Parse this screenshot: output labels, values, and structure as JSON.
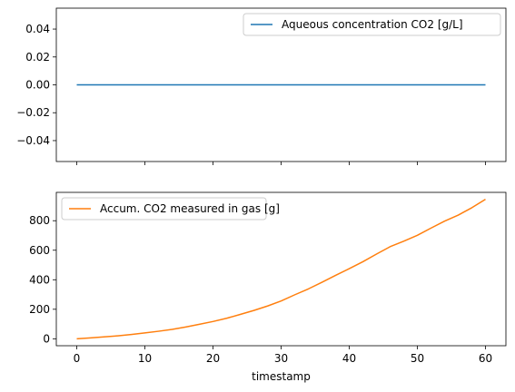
{
  "chart_data": [
    {
      "type": "line",
      "xlabel": "",
      "ylabel": "",
      "xlim": [
        -3,
        63
      ],
      "ylim": [
        -0.055,
        0.055
      ],
      "x_ticks": [
        0,
        10,
        20,
        30,
        40,
        50,
        60
      ],
      "x_tick_labels_visible": false,
      "y_ticks": [
        -0.04,
        -0.02,
        0.0,
        0.02,
        0.04
      ],
      "y_tick_labels": [
        "−0.04",
        "−0.02",
        "0.00",
        "0.02",
        "0.04"
      ],
      "grid": false,
      "legend_position": "upper-right",
      "series": [
        {
          "name": "Aqueous concentration CO2 [g/L]",
          "color": "#1f77b4",
          "x": [
            0,
            60
          ],
          "y": [
            0,
            0
          ]
        }
      ]
    },
    {
      "type": "line",
      "xlabel": "timestamp",
      "ylabel": "",
      "xlim": [
        -3,
        63
      ],
      "ylim": [
        -47,
        992
      ],
      "x_ticks": [
        0,
        10,
        20,
        30,
        40,
        50,
        60
      ],
      "x_tick_labels": [
        "0",
        "10",
        "20",
        "30",
        "40",
        "50",
        "60"
      ],
      "y_ticks": [
        0,
        200,
        400,
        600,
        800
      ],
      "y_tick_labels": [
        "0",
        "200",
        "400",
        "600",
        "800"
      ],
      "grid": false,
      "legend_position": "upper-left",
      "series": [
        {
          "name": "Accum. CO2 measured in gas [g]",
          "color": "#ff7f0e",
          "x": [
            0,
            2,
            4,
            6,
            8,
            10,
            12,
            14,
            16,
            18,
            20,
            22,
            24,
            26,
            28,
            30,
            32,
            34,
            36,
            38,
            40,
            42,
            44,
            46,
            48,
            50,
            52,
            54,
            56,
            58,
            60
          ],
          "y": [
            0,
            6,
            13,
            20,
            29,
            40,
            51,
            64,
            80,
            98,
            117,
            139,
            165,
            192,
            222,
            256,
            298,
            338,
            383,
            430,
            475,
            522,
            574,
            624,
            661,
            701,
            750,
            797,
            838,
            888,
            945
          ]
        }
      ]
    }
  ]
}
